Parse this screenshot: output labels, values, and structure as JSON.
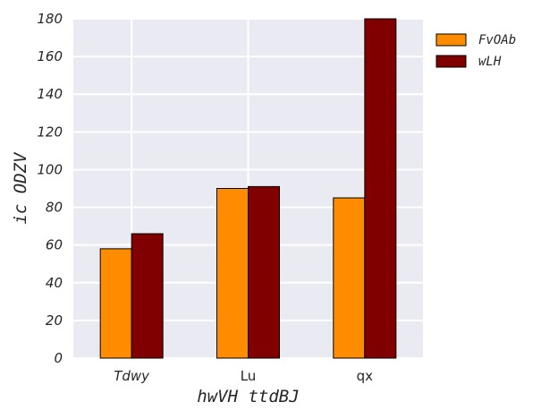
{
  "chart_data": {
    "type": "bar",
    "categories": [
      "Tdwy",
      "Lu",
      "qx"
    ],
    "category_italic": [
      true,
      false,
      false
    ],
    "series": [
      {
        "name": "FvOAb",
        "values": [
          58,
          90,
          85
        ],
        "color": "#ff8c00"
      },
      {
        "name": "wLH",
        "values": [
          66,
          91,
          180
        ],
        "color": "#800000"
      }
    ],
    "xlabel": "hwVH ttdBJ",
    "ylabel": "ic ODZV",
    "ylim": [
      0,
      180
    ],
    "yticks": [
      0,
      20,
      40,
      60,
      80,
      100,
      120,
      140,
      160,
      180
    ],
    "grid": true,
    "legend_position": "outside-right-top",
    "background_color": "#eaeaf2",
    "grid_color": "#ffffff"
  }
}
